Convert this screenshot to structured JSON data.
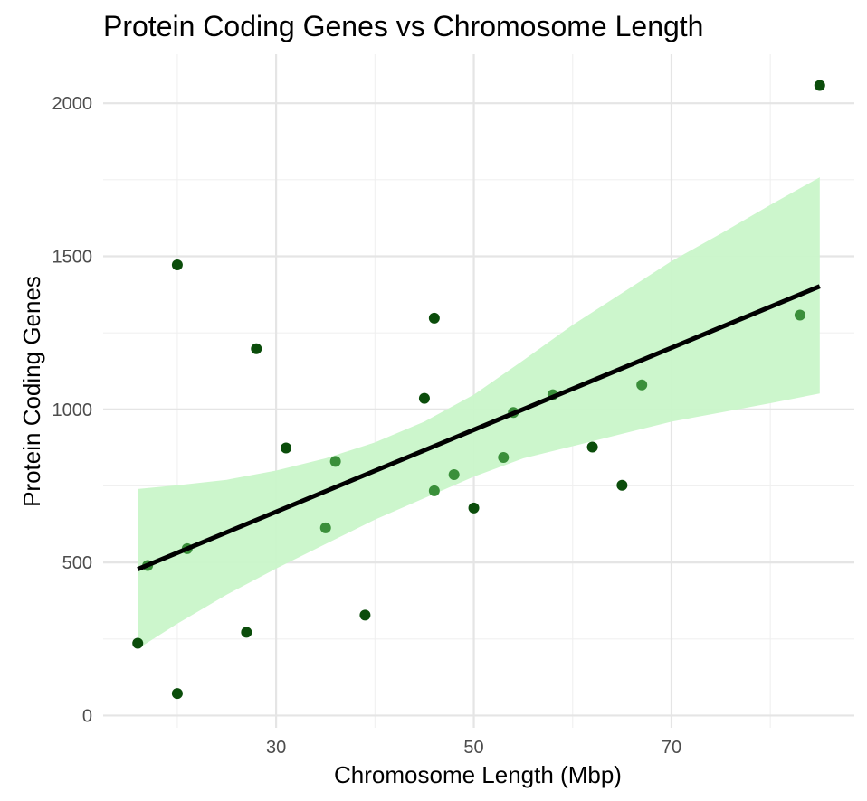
{
  "chart_data": {
    "type": "scatter",
    "title": "Protein Coding Genes vs Chromosome Length",
    "xlabel": "Chromosome Length (Mbp)",
    "ylabel": "Protein Coding Genes",
    "xlim": [
      12.5,
      88.5
    ],
    "ylim": [
      -40,
      2160
    ],
    "x_ticks": [
      30,
      50,
      70
    ],
    "x_minor_ticks": [
      20,
      40,
      60,
      80
    ],
    "y_ticks": [
      0,
      500,
      1000,
      1500,
      2000
    ],
    "y_minor_ticks": [
      250,
      750,
      1250,
      1750
    ],
    "grid": true,
    "legend": "none",
    "colors": {
      "dark_points": "#0b4d0b",
      "light_points": "#3a8f3a",
      "fit_line": "#000000",
      "confidence_band": "#c9f5c9"
    },
    "points": [
      {
        "x": 16.0,
        "y": 236,
        "shade": "dark"
      },
      {
        "x": 17.0,
        "y": 490,
        "shade": "light"
      },
      {
        "x": 20.0,
        "y": 1472,
        "shade": "dark"
      },
      {
        "x": 20.0,
        "y": 72,
        "shade": "dark"
      },
      {
        "x": 21.0,
        "y": 545,
        "shade": "light"
      },
      {
        "x": 27.0,
        "y": 272,
        "shade": "dark"
      },
      {
        "x": 28.0,
        "y": 1198,
        "shade": "dark"
      },
      {
        "x": 31.0,
        "y": 874,
        "shade": "dark"
      },
      {
        "x": 35.0,
        "y": 613,
        "shade": "light"
      },
      {
        "x": 36.0,
        "y": 830,
        "shade": "light"
      },
      {
        "x": 39.0,
        "y": 328,
        "shade": "dark"
      },
      {
        "x": 45.0,
        "y": 1036,
        "shade": "dark"
      },
      {
        "x": 46.0,
        "y": 1298,
        "shade": "dark"
      },
      {
        "x": 46.0,
        "y": 734,
        "shade": "light"
      },
      {
        "x": 48.0,
        "y": 787,
        "shade": "light"
      },
      {
        "x": 50.0,
        "y": 678,
        "shade": "dark"
      },
      {
        "x": 53.0,
        "y": 843,
        "shade": "light"
      },
      {
        "x": 54.0,
        "y": 990,
        "shade": "light"
      },
      {
        "x": 58.0,
        "y": 1048,
        "shade": "light"
      },
      {
        "x": 62.0,
        "y": 877,
        "shade": "dark"
      },
      {
        "x": 65.0,
        "y": 752,
        "shade": "dark"
      },
      {
        "x": 67.0,
        "y": 1080,
        "shade": "light"
      },
      {
        "x": 83.0,
        "y": 1308,
        "shade": "light"
      },
      {
        "x": 85.0,
        "y": 2058,
        "shade": "dark"
      }
    ],
    "fit_line": {
      "x": [
        16.0,
        85.0
      ],
      "y": [
        478,
        1402
      ]
    },
    "confidence_band": {
      "x": [
        16.0,
        20,
        25,
        30,
        35,
        40,
        45,
        50,
        55,
        60,
        65,
        70,
        75,
        80,
        85.0
      ],
      "lower": [
        218,
        300,
        395,
        480,
        560,
        640,
        710,
        780,
        840,
        880,
        920,
        960,
        990,
        1020,
        1052
      ],
      "upper": [
        740,
        752,
        770,
        800,
        840,
        892,
        960,
        1048,
        1160,
        1276,
        1380,
        1484,
        1574,
        1668,
        1758
      ]
    }
  }
}
